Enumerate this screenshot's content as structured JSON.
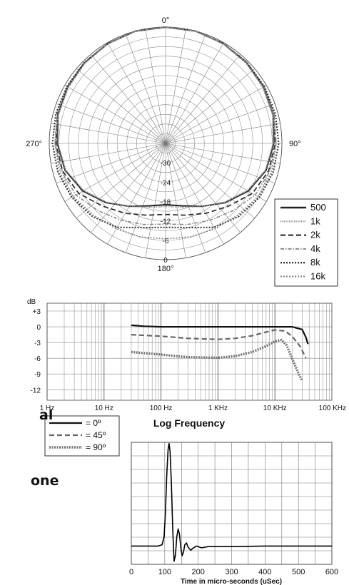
{
  "cut_off_text": [
    "al",
    "one"
  ],
  "chart_data": [
    {
      "type": "polar",
      "angle_labels": [
        "0°",
        "90°",
        "180°",
        "270°"
      ],
      "radial_labels": [
        "-30",
        "-24",
        "-18",
        "-12",
        "-6",
        "0"
      ],
      "radial_values_db": [
        -30,
        -24,
        -18,
        -12,
        -6,
        0
      ],
      "legend": {
        "position": "bottom-right",
        "entries": [
          "500",
          "1k",
          "2k",
          "4k",
          "8k",
          "16k"
        ]
      },
      "grid": true,
      "angles_deg": [
        0,
        15,
        30,
        45,
        60,
        75,
        90,
        105,
        120,
        135,
        150,
        165,
        180,
        195,
        210,
        225,
        240,
        255,
        270,
        285,
        300,
        315,
        330,
        345
      ],
      "series": [
        {
          "name": "500",
          "style": "solid",
          "width": 2.0,
          "color": "#222222",
          "values": [
            0,
            0,
            -0.3,
            -0.6,
            -1.0,
            -1.5,
            -2.5,
            -3.8,
            -6.5,
            -10.0,
            -13.5,
            -16.0,
            -17.0,
            -16.0,
            -13.5,
            -10.0,
            -6.5,
            -3.8,
            -2.5,
            -1.5,
            -1.0,
            -0.6,
            -0.3,
            0
          ]
        },
        {
          "name": "1k",
          "style": "dotted-fine",
          "width": 2.2,
          "color": "#9a9a9a",
          "values": [
            0,
            0,
            -0.3,
            -0.6,
            -1.1,
            -1.7,
            -2.7,
            -4.0,
            -6.8,
            -10.2,
            -13.5,
            -15.5,
            -16.5,
            -15.5,
            -13.5,
            -10.2,
            -6.8,
            -4.0,
            -2.7,
            -1.7,
            -1.1,
            -0.6,
            -0.3,
            0
          ]
        },
        {
          "name": "2k",
          "style": "dashed",
          "width": 1.8,
          "color": "#333333",
          "values": [
            0,
            0,
            -0.3,
            -0.5,
            -0.9,
            -1.3,
            -2.0,
            -3.0,
            -5.0,
            -8.5,
            -11.0,
            -13.0,
            -14.0,
            -13.0,
            -11.0,
            -8.5,
            -5.0,
            -3.0,
            -2.0,
            -1.3,
            -0.9,
            -0.5,
            -0.3,
            0
          ]
        },
        {
          "name": "4k",
          "style": "dash-dot",
          "width": 1.6,
          "color": "#8a8a8a",
          "values": [
            0,
            0,
            -0.3,
            -0.5,
            -0.8,
            -1.2,
            -1.8,
            -2.6,
            -4.0,
            -6.5,
            -8.5,
            -10.0,
            -11.0,
            -10.0,
            -8.5,
            -6.5,
            -4.0,
            -2.6,
            -1.8,
            -1.2,
            -0.8,
            -0.5,
            -0.3,
            0
          ]
        },
        {
          "name": "8k",
          "style": "dotted",
          "width": 2.0,
          "color": "#333333",
          "values": [
            0,
            0,
            -0.3,
            -0.5,
            -0.7,
            -0.8,
            -1.0,
            -1.5,
            -2.5,
            -4.0,
            -6.0,
            -9.0,
            -10.0,
            -9.0,
            -6.0,
            -4.0,
            -2.5,
            -1.5,
            -1.0,
            -0.8,
            -0.7,
            -0.5,
            -0.3,
            0
          ]
        },
        {
          "name": "16k",
          "style": "dotted",
          "width": 1.8,
          "color": "#8a8a8a",
          "values": [
            0,
            0,
            -0.4,
            -0.8,
            -1.3,
            -1.6,
            -1.8,
            -2.0,
            -3.0,
            -4.5,
            -5.5,
            -6.0,
            -6.5,
            -6.0,
            -5.5,
            -4.5,
            -3.0,
            -2.0,
            -1.8,
            -1.6,
            -1.3,
            -0.8,
            -0.4,
            0
          ]
        }
      ]
    },
    {
      "type": "line",
      "title": "Log Frequency",
      "ylabel": "dB",
      "x_scale": "log",
      "xlim_hz": [
        1,
        100000
      ],
      "ylim_db": [
        -14,
        4.5
      ],
      "xtick_values": [
        1,
        10,
        100,
        1000,
        10000,
        100000
      ],
      "xtick_labels": [
        "1 Hz",
        "10 Hz",
        "100 Hz",
        "1 KHz",
        "10 KHz",
        "100 KHz"
      ],
      "ytick_values": [
        3,
        0,
        -3,
        -6,
        -9,
        -12
      ],
      "ytick_labels": [
        "+3",
        "0",
        "-3",
        "-6",
        "-9",
        "-12"
      ],
      "grid": true,
      "legend": {
        "position": "bottom-left",
        "entries": [
          "= 0º",
          "= 45º",
          "= 90º"
        ]
      },
      "series": [
        {
          "name": "0º",
          "style": "solid",
          "width": 2.2,
          "color": "#111111",
          "points": [
            [
              30,
              0.3
            ],
            [
              50,
              0.1
            ],
            [
              100,
              0.0
            ],
            [
              1000,
              0.0
            ],
            [
              10000,
              0.0
            ],
            [
              20000,
              0.0
            ],
            [
              30000,
              -0.5
            ],
            [
              35000,
              -2.0
            ],
            [
              38000,
              -3.3
            ]
          ]
        },
        {
          "name": "45º",
          "style": "dashed",
          "width": 2.2,
          "color": "#666666",
          "points": [
            [
              30,
              -1.5
            ],
            [
              100,
              -1.8
            ],
            [
              300,
              -2.2
            ],
            [
              1000,
              -2.4
            ],
            [
              2000,
              -2.2
            ],
            [
              4000,
              -1.7
            ],
            [
              7000,
              -1.0
            ],
            [
              10000,
              -0.6
            ],
            [
              15000,
              -0.8
            ],
            [
              20000,
              -1.8
            ],
            [
              28000,
              -3.8
            ],
            [
              35000,
              -6.0
            ]
          ]
        },
        {
          "name": "90º",
          "style": "dotted",
          "width": 3.4,
          "color": "#777777",
          "points": [
            [
              30,
              -4.8
            ],
            [
              100,
              -5.3
            ],
            [
              300,
              -5.8
            ],
            [
              1000,
              -5.9
            ],
            [
              2000,
              -5.6
            ],
            [
              4000,
              -4.8
            ],
            [
              7000,
              -3.7
            ],
            [
              10000,
              -2.8
            ],
            [
              13000,
              -2.5
            ],
            [
              16000,
              -3.5
            ],
            [
              20000,
              -6.0
            ],
            [
              25000,
              -8.5
            ],
            [
              30000,
              -10.3
            ]
          ]
        }
      ]
    },
    {
      "type": "line",
      "xlabel": "Time in micro-seconds (uSec)",
      "xlim": [
        0,
        600
      ],
      "xtick_values": [
        0,
        100,
        200,
        300,
        400,
        500,
        600
      ],
      "xtick_labels": [
        "0",
        "100",
        "200",
        "300",
        "400",
        "500",
        "600"
      ],
      "ylim": [
        -1,
        1
      ],
      "grid": true,
      "series": [
        {
          "name": "",
          "style": "solid",
          "width": 1.6,
          "color": "#000000",
          "points": [
            [
              0,
              -0.7
            ],
            [
              80,
              -0.7
            ],
            [
              92,
              -0.68
            ],
            [
              98,
              -0.55
            ],
            [
              102,
              -0.15
            ],
            [
              106,
              0.45
            ],
            [
              110,
              0.88
            ],
            [
              113,
              0.98
            ],
            [
              116,
              0.85
            ],
            [
              120,
              0.3
            ],
            [
              124,
              -0.45
            ],
            [
              128,
              -0.95
            ],
            [
              132,
              -0.85
            ],
            [
              136,
              -0.55
            ],
            [
              140,
              -0.42
            ],
            [
              144,
              -0.5
            ],
            [
              148,
              -0.72
            ],
            [
              152,
              -0.86
            ],
            [
              156,
              -0.8
            ],
            [
              160,
              -0.68
            ],
            [
              165,
              -0.65
            ],
            [
              170,
              -0.72
            ],
            [
              178,
              -0.77
            ],
            [
              186,
              -0.73
            ],
            [
              195,
              -0.7
            ],
            [
              210,
              -0.73
            ],
            [
              230,
              -0.71
            ],
            [
              300,
              -0.71
            ],
            [
              400,
              -0.7
            ],
            [
              500,
              -0.7
            ],
            [
              600,
              -0.7
            ]
          ]
        }
      ]
    }
  ]
}
